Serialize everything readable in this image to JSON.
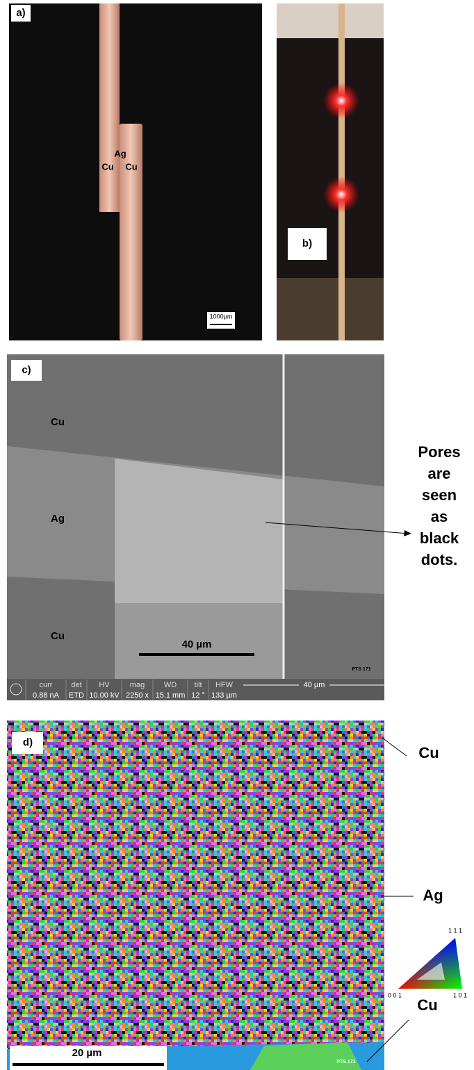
{
  "panel_a": {
    "label": "a)",
    "center_labels": [
      "Ag",
      "Cu",
      "Cu"
    ],
    "scale_bar": "1000μm"
  },
  "panel_b": {
    "label": "b)"
  },
  "panel_c": {
    "label": "c)",
    "layer_labels": [
      "Cu",
      "Ag",
      "Cu"
    ],
    "scale_bar": "40 µm",
    "sample_id": "PTS 171",
    "info_bar": [
      {
        "name": "curr",
        "value": "0.88 nA"
      },
      {
        "name": "det",
        "value": "ETD"
      },
      {
        "name": "HV",
        "value": "10.00 kV"
      },
      {
        "name": "mag",
        "value": "2250 x"
      },
      {
        "name": "WD",
        "value": "15.1 mm"
      },
      {
        "name": "tilt",
        "value": "12 °"
      },
      {
        "name": "HFW",
        "value": "133 µm"
      }
    ],
    "info_scale": "40 µm",
    "annotation": [
      "Pores",
      "are",
      "seen",
      "as",
      "black",
      "dots."
    ]
  },
  "panel_d": {
    "label": "d)",
    "layer_labels": [
      "Cu",
      "Ag",
      "Cu"
    ],
    "scale_bar": "20 µm",
    "sample_id": "PTS 171",
    "ipf_key": {
      "top": "1 1 1",
      "left": "0 0 1",
      "right": "1 0 1"
    }
  }
}
